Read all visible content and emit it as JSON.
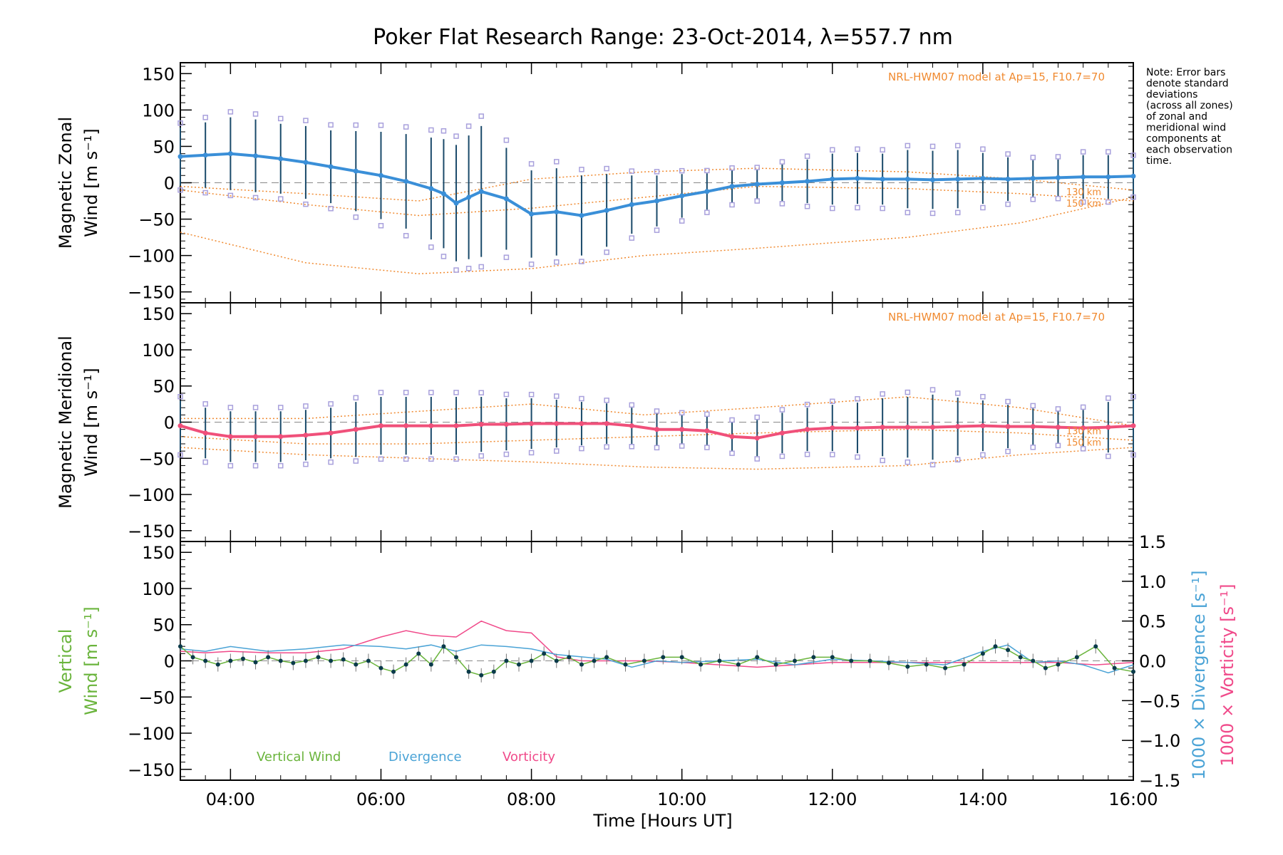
{
  "title": "Poker Flat Research Range: 23-Oct-2014, λ=557.7 nm",
  "note_lines": [
    "Note: Error bars",
    "denote standard",
    "deviations",
    "(across all zones)",
    "of zonal and",
    "meridional wind",
    "components at",
    "each observation",
    "time."
  ],
  "model_label": "NRL-HWM07 model at Ap=15, F10.7=70",
  "model_alt_labels": [
    "130 km",
    "150 km"
  ],
  "colors": {
    "zonal": "#3a8fd8",
    "meridional": "#f0507a",
    "vertical": "#6ab43c",
    "divergence": "#4aa3d6",
    "vorticity": "#f04a8a",
    "model": "#f08a30",
    "scatter": "#a8a0dc",
    "errorbar": "#1a4a6a",
    "axis": "#000000"
  },
  "chart_data": [
    {
      "type": "line",
      "name_panel": "zonal",
      "ylabel": [
        "Magnetic Zonal",
        "Wind [m s⁻¹]"
      ],
      "ylim": [
        -165,
        165
      ],
      "yticks": [
        -150,
        -100,
        -50,
        0,
        50,
        100,
        150
      ],
      "xlim": [
        "03:20",
        "16:00"
      ],
      "xticks": [
        "04:00",
        "06:00",
        "08:00",
        "10:00",
        "12:00",
        "14:00",
        "16:00"
      ],
      "x": [
        "03:20",
        "03:40",
        "04:00",
        "04:20",
        "04:40",
        "05:00",
        "05:20",
        "05:40",
        "06:00",
        "06:20",
        "06:40",
        "06:50",
        "07:00",
        "07:10",
        "07:20",
        "07:40",
        "08:00",
        "08:20",
        "08:40",
        "09:00",
        "09:20",
        "09:40",
        "10:00",
        "10:20",
        "10:40",
        "11:00",
        "11:20",
        "11:40",
        "12:00",
        "12:20",
        "12:40",
        "13:00",
        "13:20",
        "13:40",
        "14:00",
        "14:20",
        "14:40",
        "15:00",
        "15:20",
        "15:40",
        "16:00"
      ],
      "y": [
        36,
        38,
        40,
        37,
        33,
        28,
        22,
        16,
        10,
        2,
        -8,
        -15,
        -28,
        -20,
        -12,
        -22,
        -43,
        -40,
        -45,
        -38,
        -30,
        -25,
        -18,
        -12,
        -5,
        -2,
        0,
        2,
        5,
        6,
        5,
        5,
        4,
        5,
        6,
        5,
        6,
        7,
        8,
        8,
        9
      ],
      "std": [
        40,
        45,
        50,
        50,
        48,
        50,
        50,
        55,
        60,
        65,
        70,
        75,
        80,
        85,
        90,
        70,
        60,
        60,
        55,
        50,
        40,
        35,
        30,
        25,
        22,
        20,
        25,
        30,
        35,
        35,
        35,
        40,
        40,
        40,
        35,
        30,
        25,
        25,
        30,
        30,
        25
      ],
      "model_curves": [
        {
          "x": [
            "03:20",
            "05:00",
            "06:30",
            "08:00",
            "09:30",
            "11:00",
            "13:00",
            "14:30",
            "16:00"
          ],
          "y": [
            -68,
            -110,
            -125,
            -118,
            -100,
            -90,
            -75,
            -55,
            -20
          ]
        },
        {
          "x": [
            "03:20",
            "05:00",
            "06:30",
            "08:00",
            "09:30",
            "11:00",
            "13:00",
            "14:30",
            "16:00"
          ],
          "y": [
            -10,
            -30,
            -45,
            -35,
            -20,
            -5,
            -8,
            -15,
            -25
          ]
        },
        {
          "x": [
            "03:20",
            "05:00",
            "06:30",
            "08:00",
            "09:30",
            "11:00",
            "13:00",
            "14:30",
            "16:00"
          ],
          "y": [
            -5,
            -15,
            -25,
            5,
            15,
            20,
            15,
            5,
            -10
          ]
        }
      ]
    },
    {
      "type": "line",
      "name_panel": "meridional",
      "ylabel": [
        "Magnetic Meridional",
        "Wind [m s⁻¹]"
      ],
      "ylim": [
        -165,
        165
      ],
      "yticks": [
        -150,
        -100,
        -50,
        0,
        50,
        100,
        150
      ],
      "x": [
        "03:20",
        "03:40",
        "04:00",
        "04:20",
        "04:40",
        "05:00",
        "05:20",
        "05:40",
        "06:00",
        "06:20",
        "06:40",
        "07:00",
        "07:20",
        "07:40",
        "08:00",
        "08:20",
        "08:40",
        "09:00",
        "09:20",
        "09:40",
        "10:00",
        "10:20",
        "10:40",
        "11:00",
        "11:20",
        "11:40",
        "12:00",
        "12:20",
        "12:40",
        "13:00",
        "13:20",
        "13:40",
        "14:00",
        "14:20",
        "14:40",
        "15:00",
        "15:20",
        "15:40",
        "16:00"
      ],
      "y": [
        -5,
        -15,
        -20,
        -20,
        -20,
        -18,
        -15,
        -10,
        -5,
        -5,
        -5,
        -5,
        -3,
        -3,
        -2,
        -2,
        -2,
        -2,
        -5,
        -10,
        -10,
        -12,
        -20,
        -22,
        -15,
        -10,
        -8,
        -8,
        -7,
        -7,
        -7,
        -6,
        -5,
        -6,
        -6,
        -7,
        -8,
        -7,
        -5
      ],
      "std": [
        35,
        35,
        35,
        35,
        35,
        35,
        35,
        38,
        40,
        40,
        40,
        40,
        38,
        36,
        35,
        33,
        30,
        28,
        25,
        22,
        20,
        20,
        20,
        25,
        28,
        30,
        32,
        35,
        40,
        42,
        45,
        40,
        35,
        30,
        25,
        22,
        25,
        35,
        35
      ],
      "model_curves": [
        {
          "x": [
            "03:20",
            "05:00",
            "06:30",
            "08:00",
            "09:30",
            "11:00",
            "13:00",
            "14:30",
            "16:00"
          ],
          "y": [
            -35,
            -45,
            -50,
            -55,
            -62,
            -65,
            -60,
            -45,
            -35
          ]
        },
        {
          "x": [
            "03:20",
            "05:00",
            "06:30",
            "08:00",
            "09:30",
            "11:00",
            "13:00",
            "14:30",
            "16:00"
          ],
          "y": [
            5,
            5,
            15,
            25,
            10,
            20,
            35,
            20,
            -5
          ]
        },
        {
          "x": [
            "03:20",
            "05:00",
            "06:30",
            "08:00",
            "09:30",
            "11:00",
            "13:00",
            "14:30",
            "16:00"
          ],
          "y": [
            -20,
            -30,
            -30,
            -25,
            -20,
            -15,
            -10,
            -15,
            -25
          ]
        }
      ]
    },
    {
      "type": "line",
      "name_panel": "vertical",
      "ylabel_left": [
        "Vertical",
        "Wind [m s⁻¹]"
      ],
      "ylabel_right_div": "1000 × Divergence [s⁻¹]",
      "ylabel_right_vort": "1000 × Vorticity [s⁻¹]",
      "ylim": [
        -165,
        165
      ],
      "yticks": [
        -150,
        -100,
        -50,
        0,
        50,
        100,
        150
      ],
      "ylim_right": [
        -1.5,
        1.5
      ],
      "yticks_right": [
        -1.5,
        -1.0,
        -0.5,
        0.0,
        0.5,
        1.0,
        1.5
      ],
      "yticklabels_right": [
        "−1.5",
        "−1.0",
        "−0.5",
        "0.0",
        "0.5",
        "1.0",
        "1.5"
      ],
      "legend": [
        "Vertical Wind",
        "Divergence",
        "Vorticity"
      ],
      "series": [
        {
          "name": "Vertical Wind",
          "x": [
            "03:20",
            "03:30",
            "03:40",
            "03:50",
            "04:00",
            "04:10",
            "04:20",
            "04:30",
            "04:40",
            "04:50",
            "05:00",
            "05:10",
            "05:20",
            "05:30",
            "05:40",
            "05:50",
            "06:00",
            "06:10",
            "06:20",
            "06:30",
            "06:40",
            "06:50",
            "07:00",
            "07:10",
            "07:20",
            "07:30",
            "07:40",
            "07:50",
            "08:00",
            "08:10",
            "08:20",
            "08:30",
            "08:40",
            "08:50",
            "09:00",
            "09:15",
            "09:30",
            "09:45",
            "10:00",
            "10:15",
            "10:30",
            "10:45",
            "11:00",
            "11:15",
            "11:30",
            "11:45",
            "12:00",
            "12:15",
            "12:30",
            "12:45",
            "13:00",
            "13:15",
            "13:30",
            "13:45",
            "14:00",
            "14:10",
            "14:20",
            "14:30",
            "14:40",
            "14:50",
            "15:00",
            "15:15",
            "15:30",
            "15:45",
            "16:00"
          ],
          "y": [
            20,
            5,
            0,
            -5,
            0,
            3,
            -2,
            5,
            0,
            -3,
            0,
            5,
            0,
            2,
            -5,
            0,
            -10,
            -15,
            -5,
            10,
            -5,
            20,
            5,
            -15,
            -20,
            -15,
            0,
            -5,
            0,
            10,
            0,
            5,
            -5,
            0,
            5,
            -5,
            0,
            5,
            5,
            -5,
            0,
            -5,
            5,
            -5,
            0,
            5,
            5,
            0,
            0,
            -3,
            -8,
            -5,
            -10,
            -5,
            10,
            20,
            15,
            5,
            0,
            -10,
            -5,
            5,
            20,
            -10,
            -15
          ]
        },
        {
          "name": "Divergence",
          "x": [
            "03:20",
            "03:40",
            "04:00",
            "04:30",
            "05:00",
            "05:30",
            "06:00",
            "06:20",
            "06:40",
            "07:00",
            "07:20",
            "07:40",
            "08:00",
            "08:20",
            "08:40",
            "09:00",
            "09:20",
            "09:40",
            "10:00",
            "10:30",
            "11:00",
            "11:30",
            "12:00",
            "12:30",
            "13:00",
            "13:30",
            "14:00",
            "14:20",
            "14:40",
            "15:00",
            "15:20",
            "15:40",
            "16:00"
          ],
          "y": [
            0.15,
            0.12,
            0.18,
            0.12,
            0.15,
            0.2,
            0.18,
            0.15,
            0.2,
            0.12,
            0.2,
            0.18,
            0.15,
            0.08,
            0.05,
            0.02,
            -0.08,
            0.0,
            -0.02,
            0.0,
            0.02,
            -0.05,
            0.02,
            0.0,
            -0.02,
            -0.05,
            0.12,
            0.2,
            -0.02,
            0.0,
            -0.05,
            -0.15,
            -0.05
          ]
        },
        {
          "name": "Vorticity",
          "x": [
            "03:20",
            "03:40",
            "04:00",
            "04:30",
            "05:00",
            "05:30",
            "06:00",
            "06:20",
            "06:40",
            "07:00",
            "07:20",
            "07:40",
            "08:00",
            "08:20",
            "08:40",
            "09:00",
            "09:30",
            "10:00",
            "10:30",
            "11:00",
            "11:30",
            "12:00",
            "12:30",
            "13:00",
            "13:30",
            "14:00",
            "14:30",
            "15:00",
            "15:30",
            "16:00"
          ],
          "y": [
            0.12,
            0.1,
            0.12,
            0.1,
            0.1,
            0.15,
            0.3,
            0.38,
            0.32,
            0.3,
            0.5,
            0.38,
            0.35,
            0.05,
            0.0,
            0.0,
            0.0,
            -0.02,
            -0.05,
            -0.08,
            -0.05,
            -0.02,
            -0.02,
            -0.02,
            -0.02,
            -0.02,
            -0.02,
            -0.02,
            -0.05,
            -0.02
          ]
        }
      ]
    }
  ],
  "xlabel": "Time [Hours UT]"
}
